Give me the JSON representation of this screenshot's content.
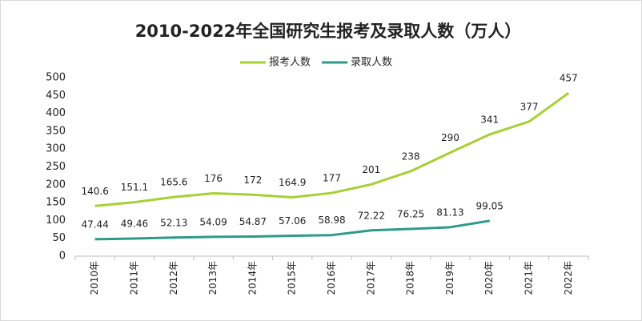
{
  "chart_data": {
    "type": "line",
    "title": "2010-2022年全国研究生报考及录取人数（万人）",
    "categories": [
      "2010年",
      "2011年",
      "2012年",
      "2013年",
      "2014年",
      "2015年",
      "2016年",
      "2017年",
      "2018年",
      "2019年",
      "2020年",
      "2021年",
      "2022年"
    ],
    "series": [
      {
        "name": "报考人数",
        "color": "#a9cf38",
        "values": [
          140.6,
          151.1,
          165.6,
          176,
          172,
          164.9,
          177,
          201,
          238,
          290,
          341,
          377,
          457
        ]
      },
      {
        "name": "录取人数",
        "color": "#2e9a8a",
        "values": [
          47.44,
          49.46,
          52.13,
          54.09,
          54.87,
          57.06,
          58.98,
          72.22,
          76.25,
          81.13,
          99.05,
          null,
          null
        ]
      }
    ],
    "ylim": [
      0,
      500
    ],
    "yticks": [
      0,
      50,
      100,
      150,
      200,
      250,
      300,
      350,
      400,
      450,
      500
    ],
    "grid": false,
    "legend": "top"
  }
}
